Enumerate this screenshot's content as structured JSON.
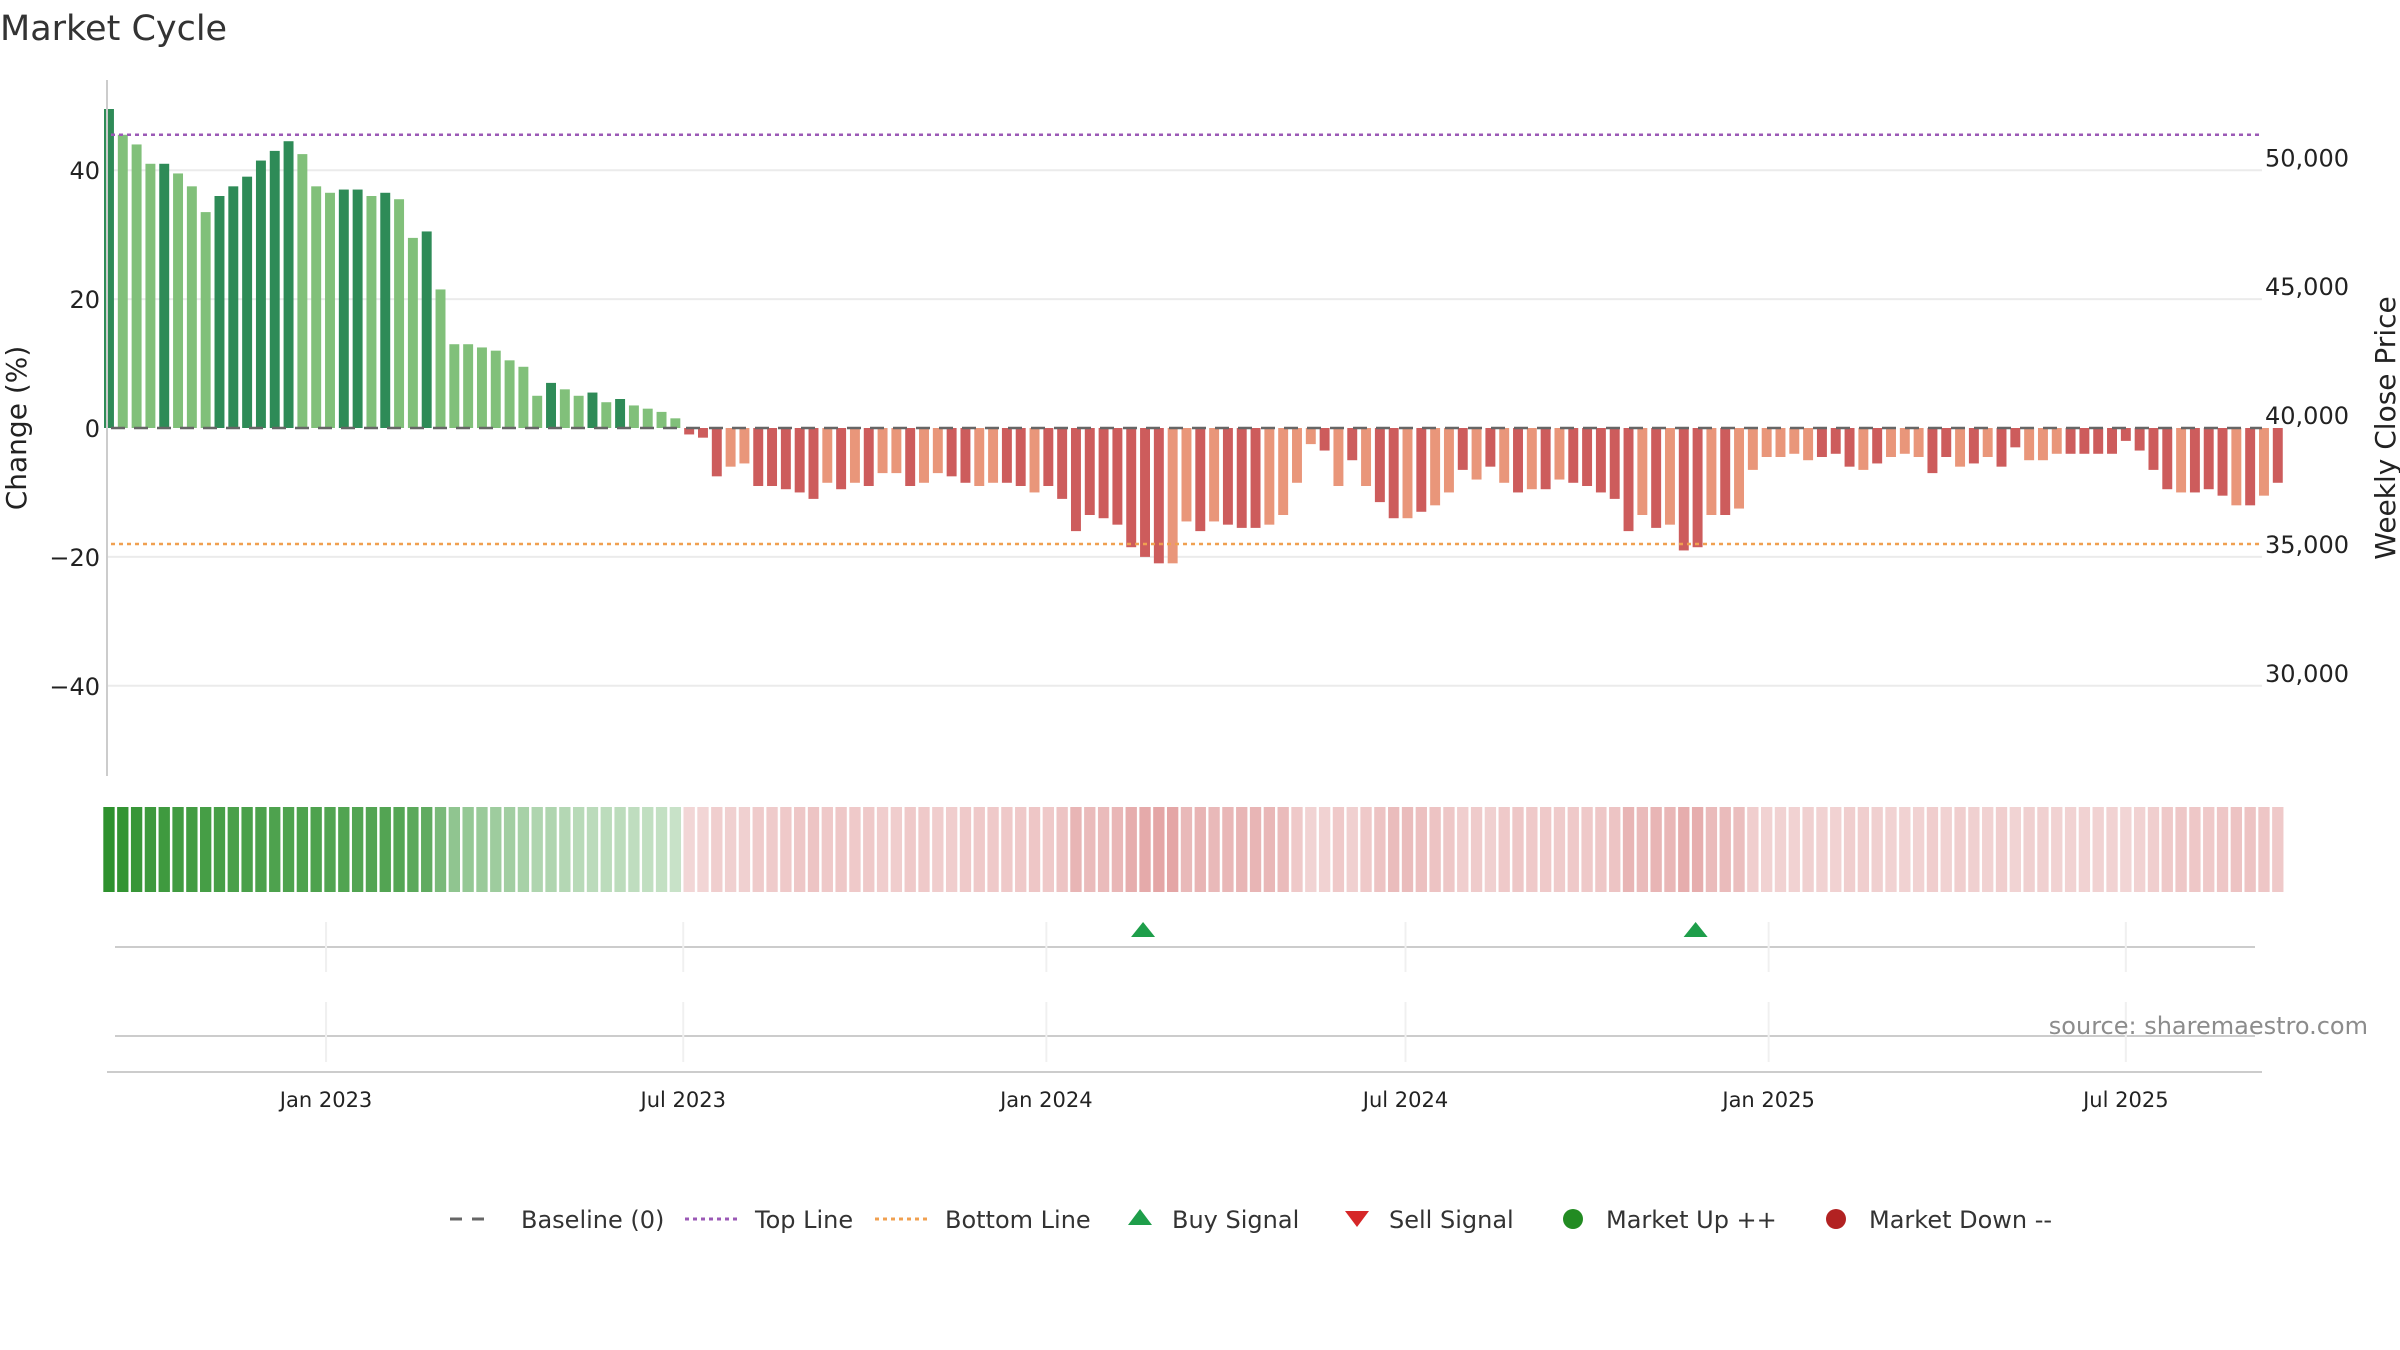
{
  "chart_data": {
    "type": "bar",
    "title": "Market Cycle",
    "ylabel": "Change (%)",
    "y2label": "Weekly Close Price",
    "ylim": [
      -54,
      54
    ],
    "y2lim": [
      26000,
      53000
    ],
    "y_ticks": [
      40,
      20,
      0,
      -20,
      -40
    ],
    "y_tick_labels": [
      "40",
      "20",
      "0",
      "−20",
      "−40"
    ],
    "y2_ticks": [
      50000,
      45000,
      40000,
      35000,
      30000
    ],
    "y2_tick_labels": [
      "50,000",
      "45,000",
      "40,000",
      "35,000",
      "30,000"
    ],
    "x_range": [
      "2022-09-12",
      "2025-09-08"
    ],
    "x_ticks": [
      "2023-01-01",
      "2023-07-01",
      "2024-01-01",
      "2024-07-01",
      "2025-01-01",
      "2025-07-01"
    ],
    "x_tick_labels": [
      "Jan 2023",
      "Jul 2023",
      "Jan 2024",
      "Jul 2024",
      "Jan 2025",
      "Jul 2025"
    ],
    "first_week": "2022-09-13",
    "week_days": 7,
    "values": [
      49.5,
      45.5,
      44,
      41,
      41,
      39.5,
      37.5,
      33.5,
      36,
      37.5,
      39,
      41.5,
      43,
      44.5,
      42.5,
      37.5,
      36.5,
      37,
      37,
      36,
      36.5,
      35.5,
      29.5,
      30.5,
      21.5,
      13,
      13,
      12.5,
      12,
      10.5,
      9.5,
      5,
      7,
      6,
      5,
      5.5,
      4,
      4.5,
      3.5,
      3,
      2.5,
      1.5,
      -1,
      -1.5,
      -7.5,
      -6,
      -5.5,
      -9,
      -9,
      -9.5,
      -10,
      -11,
      -8.5,
      -9.5,
      -8.5,
      -9,
      -7,
      -7,
      -9,
      -8.5,
      -7,
      -7.5,
      -8.5,
      -9,
      -8.5,
      -8.5,
      -9,
      -10,
      -9,
      -11,
      -16,
      -13.5,
      -14,
      -15,
      -18.5,
      -20,
      -21,
      -21,
      -14.5,
      -16,
      -14.5,
      -15,
      -15.5,
      -15.5,
      -15,
      -13.5,
      -8.5,
      -2.5,
      -3.5,
      -9,
      -5,
      -9,
      -11.5,
      -14,
      -14,
      -13,
      -12,
      -10,
      -6.5,
      -8,
      -6,
      -8.5,
      -10,
      -9.5,
      -9.5,
      -8,
      -8.5,
      -9,
      -10,
      -11,
      -16,
      -13.5,
      -15.5,
      -15,
      -19,
      -18.5,
      -13.5,
      -13.5,
      -12.5,
      -6.5,
      -4.5,
      -4.5,
      -4,
      -5,
      -4.5,
      -4,
      -6,
      -6.5,
      -5.5,
      -4.5,
      -4,
      -4.5,
      -7,
      -4.5,
      -6,
      -5.5,
      -4.5,
      -6,
      -3,
      -5,
      -5,
      -4,
      -4,
      -4,
      -4,
      -4,
      -2,
      -3.5,
      -6.5,
      -9.5,
      -10,
      -10,
      -9.5,
      -10.5,
      -12,
      -12,
      -10.5,
      -8.5
    ],
    "bar_shades": [
      "dark",
      "light",
      "light",
      "light",
      "dark",
      "light",
      "light",
      "light",
      "dark",
      "dark",
      "dark",
      "dark",
      "dark",
      "dark",
      "light",
      "light",
      "light",
      "dark",
      "dark",
      "light",
      "dark",
      "light",
      "light",
      "dark",
      "light",
      "light",
      "light",
      "light",
      "light",
      "light",
      "light",
      "light",
      "dark",
      "light",
      "light",
      "dark",
      "light",
      "dark",
      "light",
      "light",
      "light",
      "light",
      "dark",
      "dark",
      "dark",
      "light",
      "light",
      "dark",
      "dark",
      "dark",
      "dark",
      "dark",
      "light",
      "dark",
      "light",
      "dark",
      "light",
      "light",
      "dark",
      "light",
      "light",
      "dark",
      "dark",
      "light",
      "light",
      "dark",
      "dark",
      "light",
      "dark",
      "dark",
      "dark",
      "dark",
      "dark",
      "dark",
      "dark",
      "dark",
      "dark",
      "light",
      "light",
      "dark",
      "light",
      "dark",
      "dark",
      "dark",
      "light",
      "light",
      "light",
      "light",
      "dark",
      "light",
      "dark",
      "light",
      "dark",
      "dark",
      "light",
      "dark",
      "light",
      "light",
      "dark",
      "light",
      "dark",
      "light",
      "dark",
      "light",
      "dark",
      "light",
      "dark",
      "dark",
      "dark",
      "dark",
      "dark",
      "light",
      "dark",
      "light",
      "dark",
      "dark",
      "light",
      "dark",
      "light",
      "light",
      "light",
      "light",
      "light",
      "light",
      "dark",
      "dark",
      "dark",
      "light",
      "dark",
      "light",
      "light",
      "light",
      "dark",
      "dark",
      "light",
      "dark",
      "light",
      "dark",
      "dark",
      "light",
      "light",
      "light",
      "dark",
      "dark",
      "dark",
      "dark",
      "dark",
      "dark",
      "dark",
      "dark",
      "light",
      "dark",
      "dark",
      "dark",
      "light",
      "dark",
      "light",
      "dark",
      "dark",
      "dark",
      "light",
      "light"
    ],
    "band_alpha": [
      0.95,
      0.92,
      0.9,
      0.88,
      0.87,
      0.86,
      0.85,
      0.84,
      0.83,
      0.82,
      0.82,
      0.81,
      0.8,
      0.8,
      0.8,
      0.8,
      0.79,
      0.79,
      0.79,
      0.78,
      0.78,
      0.77,
      0.74,
      0.72,
      0.6,
      0.5,
      0.48,
      0.46,
      0.44,
      0.42,
      0.4,
      0.36,
      0.36,
      0.34,
      0.32,
      0.31,
      0.3,
      0.3,
      0.29,
      0.28,
      0.27,
      0.25,
      0.25,
      0.26,
      0.3,
      0.29,
      0.29,
      0.32,
      0.32,
      0.33,
      0.34,
      0.36,
      0.33,
      0.34,
      0.33,
      0.33,
      0.31,
      0.31,
      0.33,
      0.33,
      0.31,
      0.31,
      0.33,
      0.33,
      0.33,
      0.33,
      0.33,
      0.35,
      0.33,
      0.36,
      0.45,
      0.42,
      0.42,
      0.44,
      0.5,
      0.52,
      0.55,
      0.55,
      0.43,
      0.46,
      0.43,
      0.44,
      0.45,
      0.45,
      0.44,
      0.42,
      0.33,
      0.27,
      0.28,
      0.33,
      0.29,
      0.33,
      0.37,
      0.41,
      0.41,
      0.39,
      0.37,
      0.34,
      0.3,
      0.32,
      0.29,
      0.33,
      0.34,
      0.33,
      0.33,
      0.32,
      0.33,
      0.33,
      0.34,
      0.36,
      0.45,
      0.42,
      0.45,
      0.44,
      0.5,
      0.5,
      0.42,
      0.42,
      0.4,
      0.3,
      0.28,
      0.28,
      0.28,
      0.29,
      0.28,
      0.28,
      0.3,
      0.3,
      0.29,
      0.28,
      0.28,
      0.28,
      0.31,
      0.28,
      0.3,
      0.29,
      0.28,
      0.3,
      0.27,
      0.29,
      0.29,
      0.28,
      0.28,
      0.28,
      0.28,
      0.28,
      0.26,
      0.28,
      0.3,
      0.33,
      0.34,
      0.34,
      0.33,
      0.35,
      0.37,
      0.37,
      0.35,
      0.33
    ],
    "reference_lines": [
      {
        "name": "Baseline (0)",
        "value": 0,
        "style": "dashed",
        "color": "#666666"
      },
      {
        "name": "Top Line",
        "value": 45.5,
        "style": "dotted",
        "color": "#9b59b6"
      },
      {
        "name": "Bottom Line",
        "value": -18,
        "style": "dotted",
        "color": "#f0a050"
      }
    ],
    "buy_signals": [
      "2024-02-19",
      "2024-11-25"
    ],
    "sell_signals": [],
    "legend": {
      "placement": "bottom",
      "entries": [
        {
          "label": "Baseline (0)",
          "marker": "dash",
          "color": "#666666"
        },
        {
          "label": "Top Line",
          "marker": "dotted",
          "color": "#9b59b6"
        },
        {
          "label": "Bottom Line",
          "marker": "dotted",
          "color": "#f0a050"
        },
        {
          "label": "Buy Signal",
          "marker": "triangle-up",
          "color": "#1e9e4a"
        },
        {
          "label": "Sell Signal",
          "marker": "triangle-down",
          "color": "#d62728"
        },
        {
          "label": "Market Up ++",
          "marker": "circle",
          "color": "#228b22"
        },
        {
          "label": "Market Down --",
          "marker": "circle",
          "color": "#b22222"
        }
      ]
    },
    "annotation": "source: sharemaestro.com",
    "colors": {
      "up_dark": "#2e8b57",
      "up_light": "#81c07a",
      "down_dark": "#cd5c5c",
      "down_light": "#e9967a",
      "band_up": "#228b22",
      "band_down": "#cd5c5c"
    },
    "grid": true
  }
}
